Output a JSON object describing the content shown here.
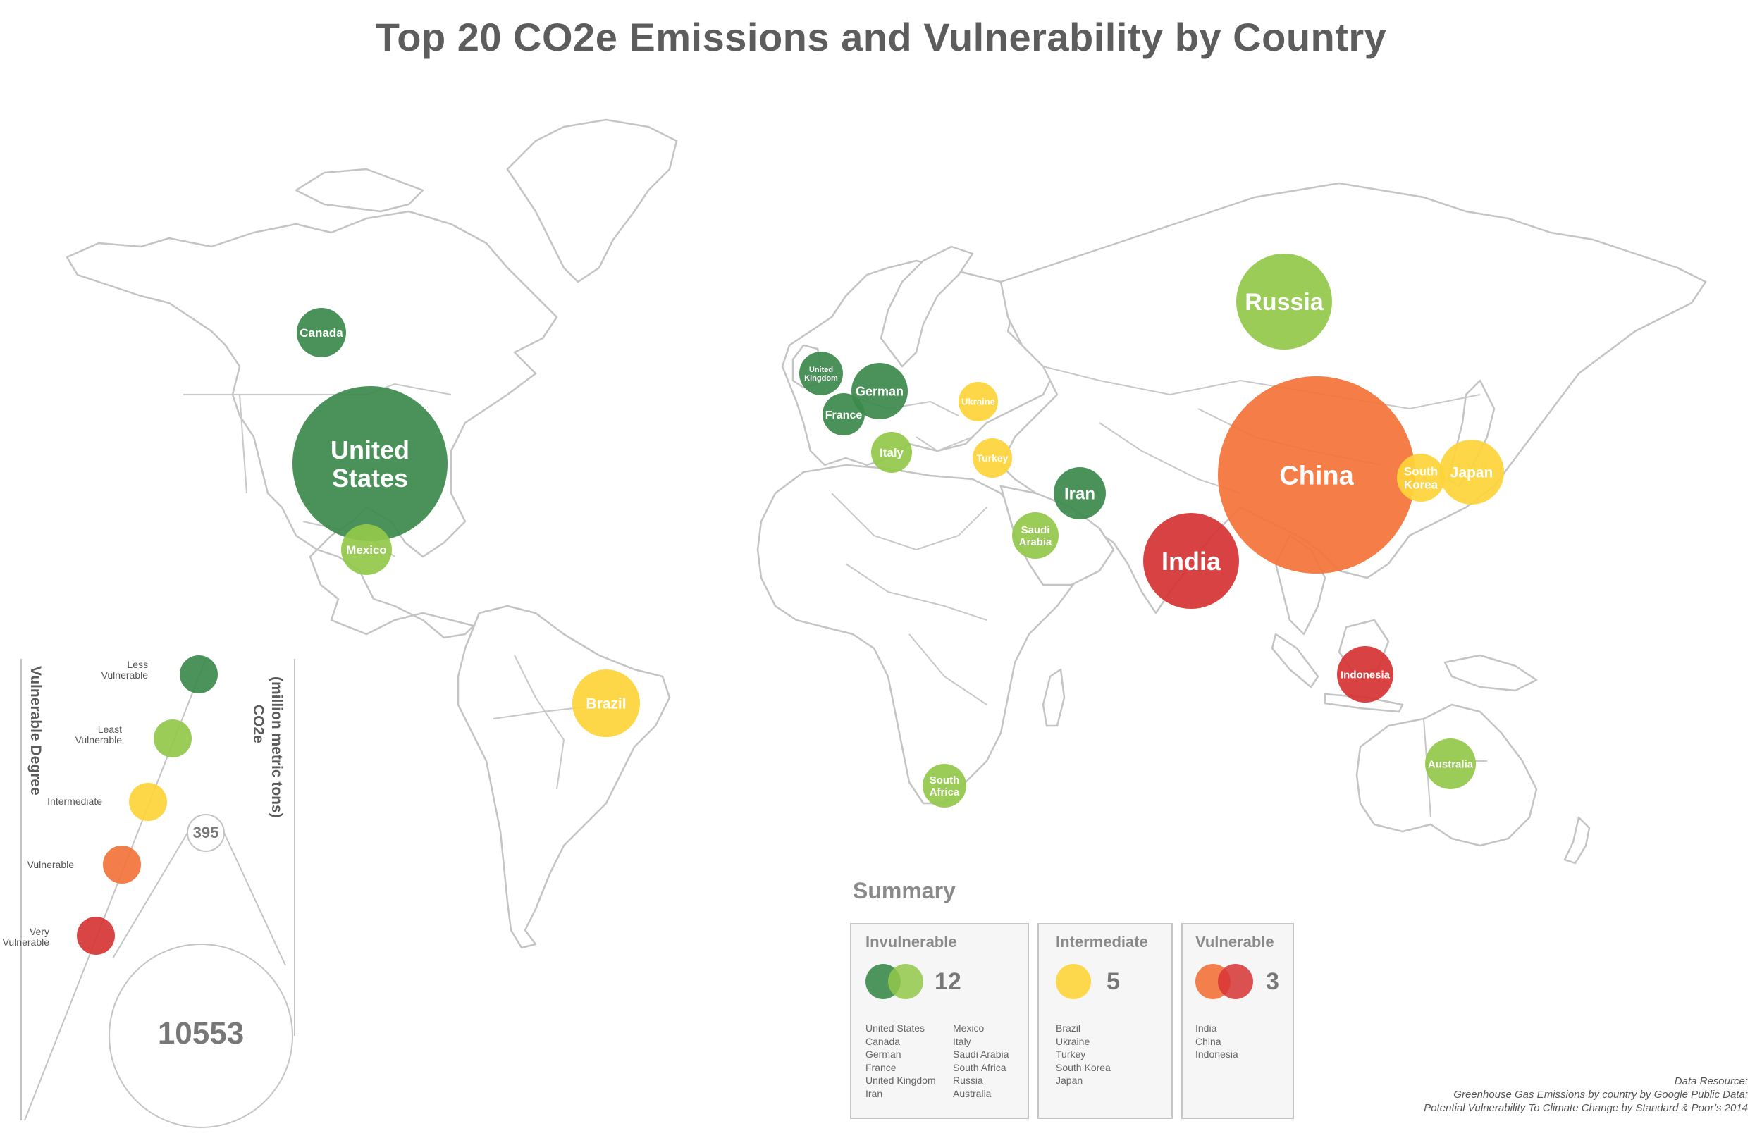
{
  "title": "Top 20 CO2e Emissions and Vulnerability by Country",
  "colors": {
    "less_vulnerable": "#3c8a4c",
    "least_vulnerable": "#92c84a",
    "intermediate": "#fed43a",
    "vulnerable": "#f3733a",
    "very_vulnerable": "#d63434",
    "land_stroke": "#c4c4c4"
  },
  "countries": [
    {
      "name": "United States",
      "label": [
        "United",
        "States"
      ],
      "category": "less_vulnerable"
    },
    {
      "name": "Canada",
      "label": [
        "Canada"
      ],
      "category": "less_vulnerable"
    },
    {
      "name": "Mexico",
      "label": [
        "Mexico"
      ],
      "category": "least_vulnerable"
    },
    {
      "name": "Brazil",
      "label": [
        "Brazil"
      ],
      "category": "intermediate"
    },
    {
      "name": "United Kingdom",
      "label": [
        "United",
        "Kingdom"
      ],
      "category": "less_vulnerable"
    },
    {
      "name": "German",
      "label": [
        "German"
      ],
      "category": "less_vulnerable"
    },
    {
      "name": "France",
      "label": [
        "France"
      ],
      "category": "less_vulnerable"
    },
    {
      "name": "Italy",
      "label": [
        "Italy"
      ],
      "category": "least_vulnerable"
    },
    {
      "name": "Ukraine",
      "label": [
        "Ukraine"
      ],
      "category": "intermediate"
    },
    {
      "name": "Turkey",
      "label": [
        "Turkey"
      ],
      "category": "intermediate"
    },
    {
      "name": "Iran",
      "label": [
        "Iran"
      ],
      "category": "less_vulnerable"
    },
    {
      "name": "Saudi Arabia",
      "label": [
        "Saudi",
        "Arabia"
      ],
      "category": "least_vulnerable"
    },
    {
      "name": "South Africa",
      "label": [
        "South",
        "Africa"
      ],
      "category": "least_vulnerable"
    },
    {
      "name": "Russia",
      "label": [
        "Russia"
      ],
      "category": "least_vulnerable"
    },
    {
      "name": "China",
      "label": [
        "China"
      ],
      "category": "vulnerable"
    },
    {
      "name": "India",
      "label": [
        "India"
      ],
      "category": "very_vulnerable"
    },
    {
      "name": "Japan",
      "label": [
        "Japan"
      ],
      "category": "intermediate"
    },
    {
      "name": "South Korea",
      "label": [
        "South",
        "Korea"
      ],
      "category": "intermediate"
    },
    {
      "name": "Indonesia",
      "label": [
        "Indonesia"
      ],
      "category": "very_vulnerable"
    },
    {
      "name": "Australia",
      "label": [
        "Australia"
      ],
      "category": "least_vulnerable"
    }
  ],
  "legend": {
    "title": "Vulnerable Degree",
    "items": [
      {
        "label": [
          "Less",
          "Vulnerable"
        ],
        "category": "less_vulnerable"
      },
      {
        "label": [
          "Least",
          "Vulnerable"
        ],
        "category": "least_vulnerable"
      },
      {
        "label": [
          "Intermediate"
        ],
        "category": "intermediate"
      },
      {
        "label": [
          "Vulnerable"
        ],
        "category": "vulnerable"
      },
      {
        "label": [
          "Very",
          "Vulnerable"
        ],
        "category": "very_vulnerable"
      }
    ],
    "size_title": [
      "CO2e",
      "(million metric tons)"
    ],
    "size_min": "395",
    "size_max": "10553"
  },
  "summary": {
    "title": "Summary",
    "groups": [
      {
        "name": "Invulnerable",
        "count": "12",
        "col1": [
          "United States",
          "Canada",
          "German",
          "France",
          "United Kingdom",
          "Iran"
        ],
        "col2": [
          "Mexico",
          "Italy",
          "Saudi Arabia",
          "South Africa",
          "Russia",
          "Australia"
        ]
      },
      {
        "name": "Intermediate",
        "count": "5",
        "col1": [
          "Brazil",
          "Ukraine",
          "Turkey",
          "South Korea",
          "Japan"
        ]
      },
      {
        "name": "Vulnerable",
        "count": "3",
        "col1": [
          "India",
          "China",
          "Indonesia"
        ]
      }
    ]
  },
  "source": {
    "line1": "Data Resource:",
    "line2": "Greenhouse Gas Emissions by country by Google Public Data;",
    "line3": "Potential Vulnerability To Climate Change by Standard & Poor’s 2014"
  }
}
